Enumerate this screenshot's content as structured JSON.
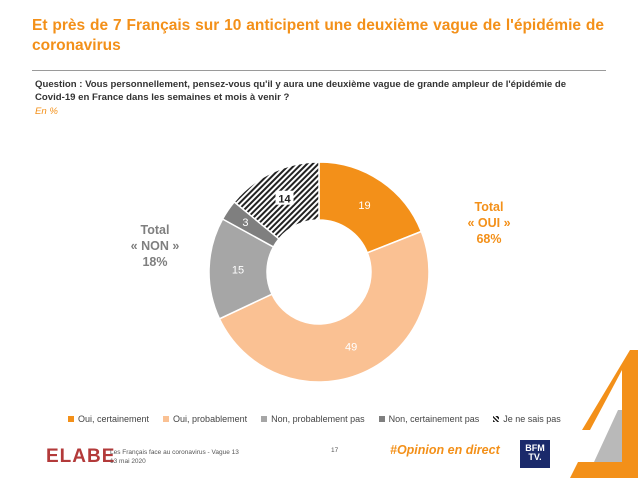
{
  "title": "Et près de 7 Français sur 10 anticipent une deuxième vague de l'épidémie de coronavirus",
  "question": "Question : Vous personnellement, pensez-vous qu'il y aura une deuxième vague de grande ampleur de l'épidémie de Covid-19 en France dans les semaines et mois à venir ?",
  "unit": "En %",
  "totals": {
    "non": {
      "line1": "Total",
      "line2": "« NON »",
      "line3": "18%"
    },
    "oui": {
      "line1": "Total",
      "line2": "« OUI »",
      "line3": "68%"
    }
  },
  "chart_data": {
    "type": "pie",
    "donut": true,
    "categories": [
      "Oui, certainement",
      "Oui, probablement",
      "Non, probablement pas",
      "Non, certainement pas",
      "Je ne sais pas"
    ],
    "values": [
      19,
      49,
      15,
      3,
      14
    ],
    "colors": [
      "#F39019",
      "#FAC193",
      "#A6A6A6",
      "#7F7F7F",
      "hatch"
    ],
    "legend_position": "bottom"
  },
  "footer": {
    "logo": "ELABE",
    "line1": "Les Français face au coronavirus - Vague 13",
    "line2": "13 mai 2020",
    "page": "17",
    "hashtag": "#Opinion en direct",
    "partner_logo_line1": "BFM",
    "partner_logo_line2": "TV."
  }
}
